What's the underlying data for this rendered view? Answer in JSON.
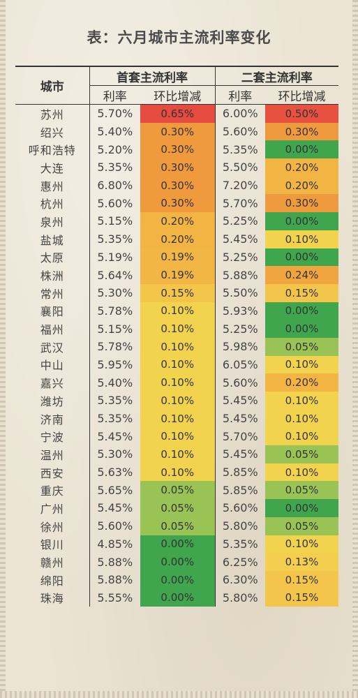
{
  "title": "表：六月城市主流利率变化",
  "headers": {
    "city": "城市",
    "first_group": "首套主流利率",
    "second_group": "二套主流利率",
    "rate": "利率",
    "change": "环比增减"
  },
  "rows": [
    {
      "city": "苏州",
      "r1": "5.70%",
      "c1": "0.65%",
      "r2": "6.00%",
      "c2": "0.50%"
    },
    {
      "city": "绍兴",
      "r1": "5.40%",
      "c1": "0.30%",
      "r2": "5.60%",
      "c2": "0.30%"
    },
    {
      "city": "呼和浩特",
      "r1": "5.20%",
      "c1": "0.30%",
      "r2": "5.35%",
      "c2": "0.00%"
    },
    {
      "city": "大连",
      "r1": "5.35%",
      "c1": "0.30%",
      "r2": "5.50%",
      "c2": "0.20%"
    },
    {
      "city": "惠州",
      "r1": "6.80%",
      "c1": "0.30%",
      "r2": "7.20%",
      "c2": "0.20%"
    },
    {
      "city": "杭州",
      "r1": "5.60%",
      "c1": "0.30%",
      "r2": "5.70%",
      "c2": "0.30%"
    },
    {
      "city": "泉州",
      "r1": "5.15%",
      "c1": "0.20%",
      "r2": "5.25%",
      "c2": "0.00%"
    },
    {
      "city": "盐城",
      "r1": "5.35%",
      "c1": "0.20%",
      "r2": "5.45%",
      "c2": "0.10%"
    },
    {
      "city": "太原",
      "r1": "5.19%",
      "c1": "0.19%",
      "r2": "5.25%",
      "c2": "0.00%"
    },
    {
      "city": "株洲",
      "r1": "5.64%",
      "c1": "0.19%",
      "r2": "5.88%",
      "c2": "0.24%"
    },
    {
      "city": "常州",
      "r1": "5.30%",
      "c1": "0.15%",
      "r2": "5.50%",
      "c2": "0.15%"
    },
    {
      "city": "襄阳",
      "r1": "5.78%",
      "c1": "0.10%",
      "r2": "5.93%",
      "c2": "0.00%"
    },
    {
      "city": "福州",
      "r1": "5.15%",
      "c1": "0.10%",
      "r2": "5.25%",
      "c2": "0.00%"
    },
    {
      "city": "武汉",
      "r1": "5.78%",
      "c1": "0.10%",
      "r2": "5.98%",
      "c2": "0.05%"
    },
    {
      "city": "中山",
      "r1": "5.95%",
      "c1": "0.10%",
      "r2": "6.05%",
      "c2": "0.10%"
    },
    {
      "city": "嘉兴",
      "r1": "5.40%",
      "c1": "0.10%",
      "r2": "5.60%",
      "c2": "0.20%"
    },
    {
      "city": "潍坊",
      "r1": "5.35%",
      "c1": "0.10%",
      "r2": "5.45%",
      "c2": "0.10%"
    },
    {
      "city": "济南",
      "r1": "5.35%",
      "c1": "0.10%",
      "r2": "5.45%",
      "c2": "0.10%"
    },
    {
      "city": "宁波",
      "r1": "5.45%",
      "c1": "0.10%",
      "r2": "5.70%",
      "c2": "0.10%"
    },
    {
      "city": "温州",
      "r1": "5.30%",
      "c1": "0.10%",
      "r2": "5.45%",
      "c2": "0.05%"
    },
    {
      "city": "西安",
      "r1": "5.63%",
      "c1": "0.10%",
      "r2": "5.85%",
      "c2": "0.10%"
    },
    {
      "city": "重庆",
      "r1": "5.65%",
      "c1": "0.05%",
      "r2": "5.85%",
      "c2": "0.05%"
    },
    {
      "city": "广州",
      "r1": "5.45%",
      "c1": "0.05%",
      "r2": "5.60%",
      "c2": "0.00%"
    },
    {
      "city": "徐州",
      "r1": "5.60%",
      "c1": "0.05%",
      "r2": "5.80%",
      "c2": "0.05%"
    },
    {
      "city": "银川",
      "r1": "4.85%",
      "c1": "0.00%",
      "r2": "5.35%",
      "c2": "0.10%"
    },
    {
      "city": "赣州",
      "r1": "5.88%",
      "c1": "0.00%",
      "r2": "6.25%",
      "c2": "0.13%"
    },
    {
      "city": "绵阳",
      "r1": "5.88%",
      "c1": "0.00%",
      "r2": "6.30%",
      "c2": "0.15%"
    },
    {
      "city": "珠海",
      "r1": "5.55%",
      "c1": "0.00%",
      "r2": "5.80%",
      "c2": "0.15%"
    }
  ],
  "colors": {
    "0.65%": "#e54b3e",
    "0.50%": "#e8503f",
    "0.30%": "#ef9a3d",
    "0.24%": "#f0a53f",
    "0.20%": "#f2b443",
    "0.19%": "#f2b645",
    "0.15%": "#f3c64b",
    "0.13%": "#f4cf4f",
    "0.10%": "#f2d34d",
    "0.05%": "#99c355",
    "0.00%": "#3fa64e"
  }
}
